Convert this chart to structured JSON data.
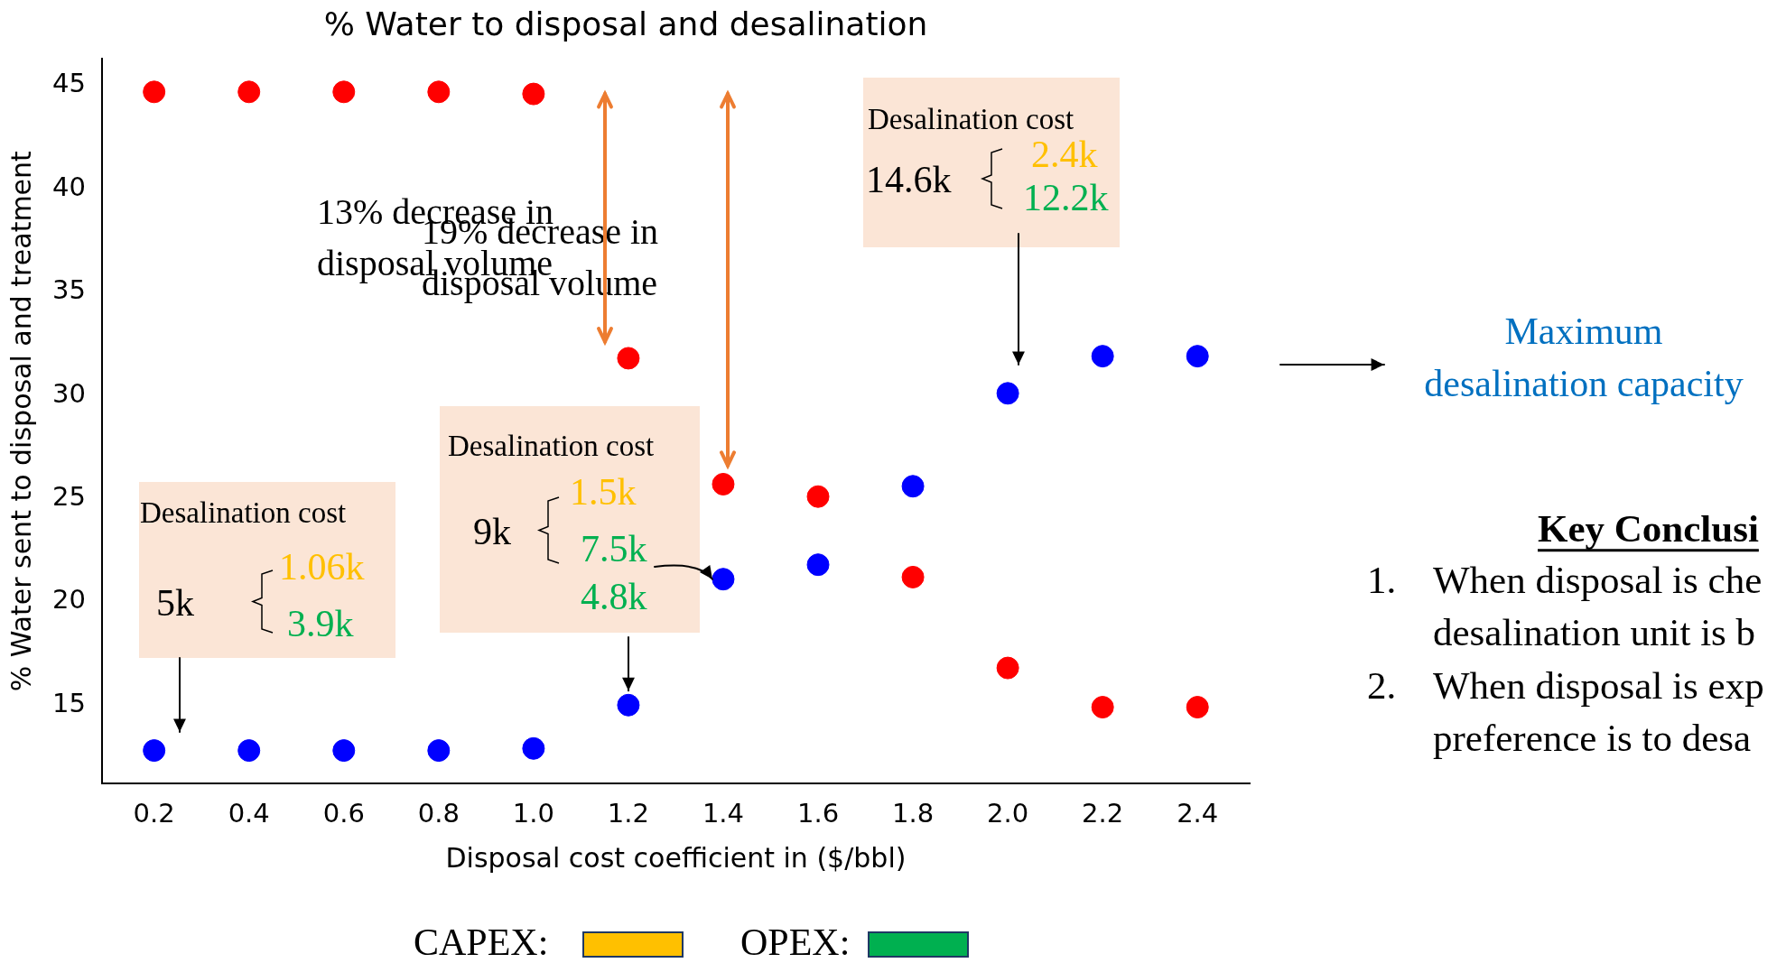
{
  "chart_data": {
    "type": "scatter",
    "title": "% Water to disposal and desalination",
    "xlabel": "Disposal cost coefficient in ($/bbl)",
    "ylabel": "% Water sent to disposal and treatment",
    "x": [
      0.2,
      0.4,
      0.6,
      0.8,
      1.0,
      1.2,
      1.4,
      1.6,
      1.8,
      2.0,
      2.2,
      2.4
    ],
    "series": [
      {
        "color": "#ff0000",
        "values": [
          44.7,
          44.7,
          44.7,
          44.7,
          44.6,
          31.8,
          25.7,
          25.1,
          21.2,
          16.8,
          14.9,
          14.9
        ]
      },
      {
        "color": "#0000ff",
        "values": [
          12.8,
          12.8,
          12.8,
          12.8,
          12.9,
          15.0,
          21.1,
          21.8,
          25.6,
          30.1,
          31.9,
          31.9
        ]
      }
    ],
    "xlim": [
      0.09,
      2.51
    ],
    "ylim": [
      11.2,
      46.3
    ],
    "xticks": [
      {
        "value": 0.2,
        "label": "0.2"
      },
      {
        "value": 0.4,
        "label": "0.4"
      },
      {
        "value": 0.6,
        "label": "0.6"
      },
      {
        "value": 0.8,
        "label": "0.8"
      },
      {
        "value": 1.0,
        "label": "1.0"
      },
      {
        "value": 1.2,
        "label": "1.2"
      },
      {
        "value": 1.4,
        "label": "1.4"
      },
      {
        "value": 1.6,
        "label": "1.6"
      },
      {
        "value": 1.8,
        "label": "1.8"
      },
      {
        "value": 2.0,
        "label": "2.0"
      },
      {
        "value": 2.2,
        "label": "2.2"
      },
      {
        "value": 2.4,
        "label": "2.4"
      }
    ],
    "yticks": [
      15,
      20,
      25,
      30,
      35,
      40,
      45
    ],
    "grid": false,
    "legend": false,
    "marker": "circle",
    "annotations": [
      "13% decrease in disposal volume",
      "19% decrease in disposal volume",
      "Desalination cost",
      "5k",
      "1.06k",
      "3.9k",
      "Desalination cost",
      "9k",
      "1.5k",
      {
        "text": "7.5k",
        "x": 1.4,
        "y": 21.1
      },
      {
        "text": "4.8k",
        "x": 1.2,
        "y": 15.0
      },
      "Desalination cost",
      "14.6k",
      "2.4k",
      "12.2k",
      "Maximum desalination capacity",
      "Key Conclusi",
      "1.",
      "When disposal is che",
      "desalination unit is b",
      "2.",
      "When disposal is exp",
      "preference is to desa",
      "CAPEX:",
      "OPEX:"
    ]
  }
}
